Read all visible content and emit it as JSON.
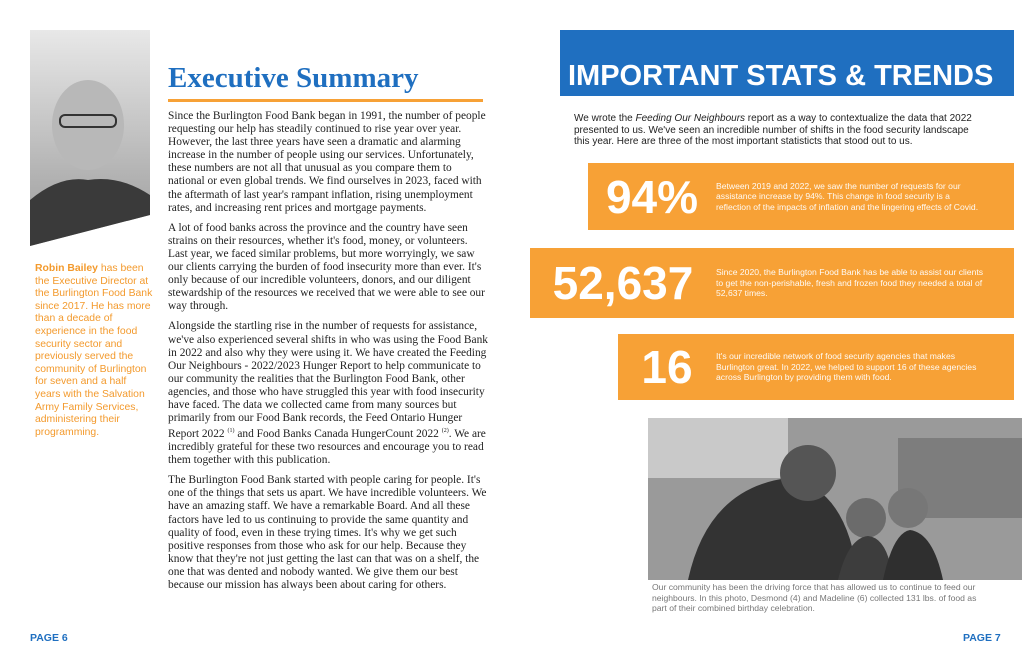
{
  "left": {
    "title": "Executive Summary",
    "bio": {
      "name": "Robin Bailey",
      "text": " has been the Executive Director at the Burlington Food Bank since 2017. He has more than a decade of experience in the food security sector and previously served the community of Burlington for seven and a half years with the Salvation Army Family Services, administering their programming."
    },
    "paragraphs": [
      "Since the Burlington Food Bank began in 1991, the number of people requesting our help has steadily continued to rise year over year. However, the last three years have seen a dramatic and alarming increase in the number of people using our services. Unfortunately, these numbers are not all that unusual as you compare them to national or even global trends. We find ourselves in 2023, faced with the aftermath of last year's rampant inflation, rising unemployment rates, and increasing rent prices and mortgage payments.",
      "A lot of food banks across the province and the country have seen strains on their resources, whether it's food, money, or volunteers. Last year, we faced similar problems, but more worryingly, we saw our clients carrying the burden of food insecurity more than ever. It's only because of our incredible volunteers, donors, and our diligent stewardship of the resources we received that we were able to see our way through.",
      [
        "Alongside the startling rise in the number of requests for assistance, we've also experienced several shifts in who was using the Food Bank in 2022 and also why they were using it. We have created the Feeding Our Neighbours - 2022/2023 Hunger Report to help communicate to our community the realities that the Burlington Food Bank, other agencies, and those who have struggled this year with food insecurity have faced. The data we collected came from many sources but primarily from our Food Bank records, the Feed Ontario Hunger Report 2022 ",
        "(1)",
        " and Food Banks Canada HungerCount 2022 ",
        "(2)",
        ". We are incredibly grateful for these two resources and encourage you to read them together with this publication."
      ],
      "The Burlington Food Bank started with people caring for people. It's one of the things that sets us apart. We have incredible volunteers. We have an amazing staff. We have a remarkable Board. And all these factors have led to us continuing to provide the same quantity and quality of food, even in these trying times. It's why we get such positive responses from those who ask for our help. Because they know that they're not just getting the last can that was on a shelf, the one that was dented and nobody wanted. We give them our best because our mission has always been about caring for others."
    ],
    "page": "PAGE 6"
  },
  "right": {
    "title": "IMPORTANT STATS & TRENDS",
    "intro": [
      "We wrote the ",
      "Feeding Our Neighbours",
      " report as a way to contextualize the data that 2022 presented to us. We've seen an incredible number of shifts in the food security landscape this year. Here are three of the most important statisticts that stood out to us."
    ],
    "stats": [
      {
        "number": "94%",
        "text": "Between 2019 and 2022, we saw the number of requests for our assistance increase by 94%. This change in food security is a reflection of the impacts of inflation and the lingering effects of Covid."
      },
      {
        "number": "52,637",
        "text": "Since 2020, the Burlington Food Bank has be able to assist our clients to get the non-perishable, fresh and frozen food they needed a total of 52,637 times."
      },
      {
        "number": "16",
        "text": "It's our incredible network of food security agencies that makes Burlington great. In 2022, we helped to support 16 of these agencies across Burlington by providing them with food."
      }
    ],
    "caption": "Our community has been the driving force that has allowed us to continue to feed our neighbours. In this photo, Desmond (4) and Madeline (6) collected 131 lbs. of food as part of their combined birthday celebration.",
    "page": "PAGE 7"
  }
}
